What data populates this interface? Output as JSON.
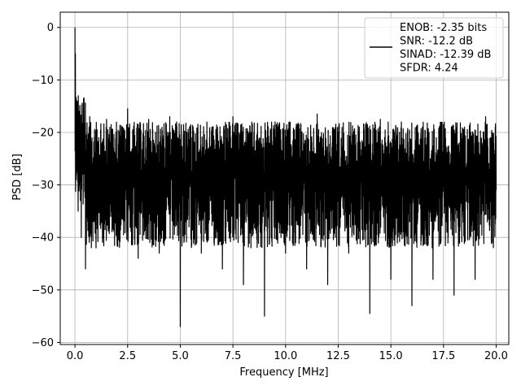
{
  "chart_data": {
    "type": "line",
    "title": "",
    "xlabel": "Frequency [MHz]",
    "ylabel": "PSD [dB]",
    "xlim": [
      -0.7,
      20.6
    ],
    "ylim": [
      -60.4,
      2.9
    ],
    "xticks": [
      0.0,
      2.5,
      5.0,
      7.5,
      10.0,
      12.5,
      15.0,
      17.5,
      20.0
    ],
    "xtick_labels": [
      "0.0",
      "2.5",
      "5.0",
      "7.5",
      "10.0",
      "12.5",
      "15.0",
      "17.5",
      "20.0"
    ],
    "yticks": [
      0,
      -10,
      -20,
      -30,
      -40,
      -50,
      -60
    ],
    "ytick_labels": [
      "0",
      "−10",
      "−20",
      "−30",
      "−40",
      "−50",
      "−60"
    ],
    "grid": true,
    "legend": {
      "location": "top-right",
      "entries": [
        "ENOB: -2.35 bits",
        "SNR: -12.2 dB",
        "SINAD: -12.39 dB",
        "SFDR: 4.24"
      ]
    },
    "series": [
      {
        "color": "#000000",
        "x": [
          0.0,
          0.02,
          0.05,
          0.1,
          0.15,
          0.2,
          0.3,
          0.4,
          0.5,
          0.7,
          1.0,
          1.5,
          2.0,
          2.5,
          3.0,
          3.5,
          4.0,
          4.5,
          5.0,
          5.5,
          6.0,
          6.5,
          7.0,
          7.5,
          8.0,
          8.5,
          9.0,
          9.5,
          10.0,
          10.5,
          11.0,
          11.5,
          12.0,
          12.5,
          13.0,
          13.5,
          14.0,
          14.5,
          15.0,
          15.5,
          16.0,
          16.5,
          17.0,
          17.5,
          18.0,
          18.5,
          19.0,
          19.5,
          20.0
        ],
        "y": [
          0.0,
          -5.0,
          -20.0,
          -14.0,
          -35.0,
          -16.0,
          -40.0,
          -18.0,
          -46.0,
          -17.0,
          -42.0,
          -17.5,
          -41.0,
          -15.5,
          -44.0,
          -17.5,
          -43.0,
          -17.0,
          -57.0,
          -19.0,
          -43.0,
          -19.0,
          -46.0,
          -17.0,
          -49.0,
          -20.0,
          -55.0,
          -18.0,
          -43.0,
          -19.0,
          -46.0,
          -16.5,
          -49.0,
          -20.0,
          -43.0,
          -19.0,
          -54.5,
          -17.5,
          -48.0,
          -18.0,
          -53.0,
          -19.0,
          -48.0,
          -18.5,
          -51.0,
          -19.0,
          -48.0,
          -17.0,
          -31.0
        ]
      }
    ]
  }
}
